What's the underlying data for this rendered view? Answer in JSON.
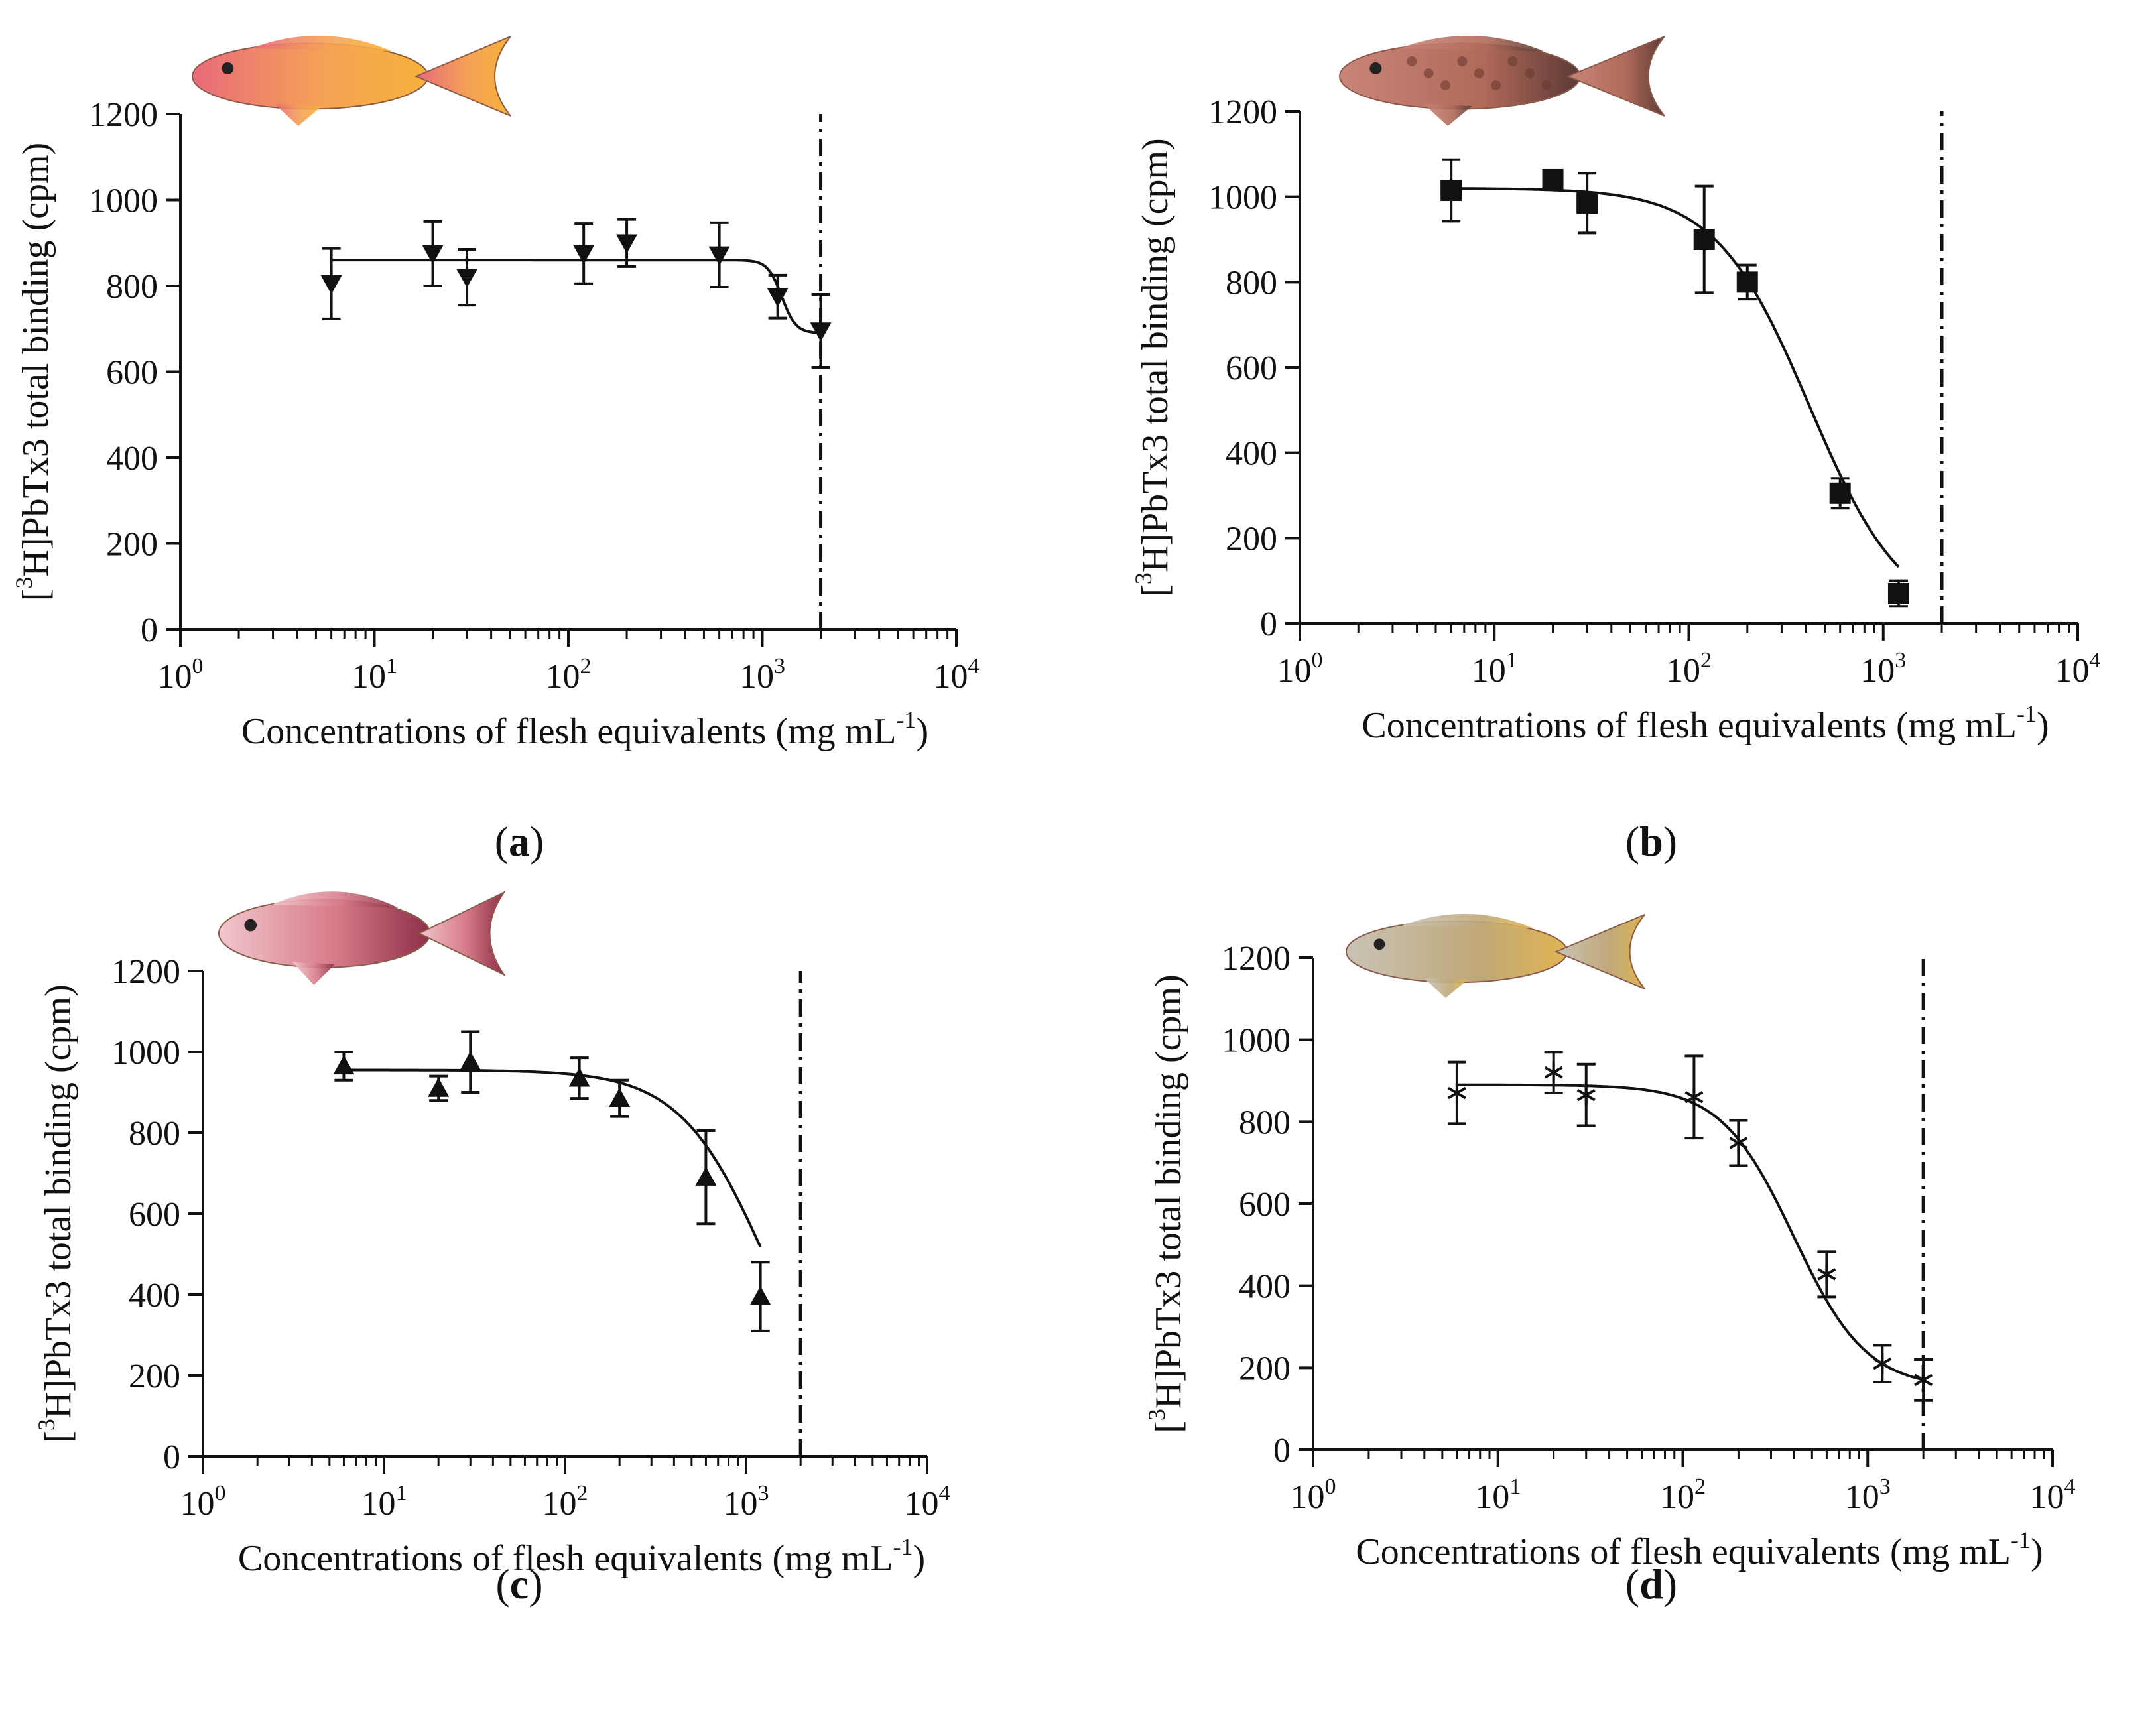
{
  "figure": {
    "colors": {
      "ink": "#111111",
      "background": "#ffffff"
    },
    "fish_illustrations": [
      "fish-a-orange",
      "fish-b-brown-spotted",
      "fish-c-red",
      "fish-d-yellowtail"
    ]
  },
  "chart_data": [
    {
      "type": "scatter",
      "panel_label": "(a)",
      "panel_letter": "a",
      "marker": "triangle-down",
      "fish_icon": "orange-fish-icon",
      "xlabel": "Concentrations of flesh equivalents (mg mL",
      "xlabel_sup": "-1",
      "xlabel_end": ")",
      "ylabel_pre": "[",
      "ylabel_sup": "3",
      "ylabel_main": "H]PbTx3 total binding (cpm)",
      "xscale": "log",
      "xlim": [
        1,
        10000
      ],
      "ylim": [
        0,
        1200
      ],
      "yticks": [
        "0",
        "200",
        "400",
        "600",
        "800",
        "1000",
        "1200"
      ],
      "xticks": [
        {
          "base": "10",
          "exp": "0"
        },
        {
          "base": "10",
          "exp": "1"
        },
        {
          "base": "10",
          "exp": "2"
        },
        {
          "base": "10",
          "exp": "3"
        },
        {
          "base": "10",
          "exp": "4"
        }
      ],
      "vline_x": 2000,
      "points": [
        {
          "x": 6,
          "y": 805,
          "err": 82
        },
        {
          "x": 20,
          "y": 875,
          "err": 75
        },
        {
          "x": 30,
          "y": 820,
          "err": 65
        },
        {
          "x": 120,
          "y": 875,
          "err": 70
        },
        {
          "x": 200,
          "y": 900,
          "err": 55
        },
        {
          "x": 600,
          "y": 872,
          "err": 75
        },
        {
          "x": 1200,
          "y": 775,
          "err": 50
        },
        {
          "x": 2000,
          "y": 695,
          "err": 85
        }
      ],
      "fit": {
        "top": 860,
        "bottom": 690,
        "logEC50": 3.1,
        "hill": 12,
        "x_end": 2000
      }
    },
    {
      "type": "scatter",
      "panel_label": "(b)",
      "panel_letter": "b",
      "marker": "square",
      "fish_icon": "brown-spotted-fish-icon",
      "xlabel": "Concentrations of flesh equivalents (mg mL",
      "xlabel_sup": "-1",
      "xlabel_end": ")",
      "ylabel_pre": "[",
      "ylabel_sup": "3",
      "ylabel_main": "H]PbTx3 total binding (cpm)",
      "xscale": "log",
      "xlim": [
        1,
        10000
      ],
      "ylim": [
        0,
        1200
      ],
      "yticks": [
        "0",
        "200",
        "400",
        "600",
        "800",
        "1000",
        "1200"
      ],
      "xticks": [
        {
          "base": "10",
          "exp": "0"
        },
        {
          "base": "10",
          "exp": "1"
        },
        {
          "base": "10",
          "exp": "2"
        },
        {
          "base": "10",
          "exp": "3"
        },
        {
          "base": "10",
          "exp": "4"
        }
      ],
      "vline_x": 2000,
      "points": [
        {
          "x": 6,
          "y": 1015,
          "err": 72
        },
        {
          "x": 20,
          "y": 1040,
          "err": 15
        },
        {
          "x": 30,
          "y": 985,
          "err": 70
        },
        {
          "x": 120,
          "y": 900,
          "err": 125
        },
        {
          "x": 200,
          "y": 800,
          "err": 40
        },
        {
          "x": 600,
          "y": 305,
          "err": 35
        },
        {
          "x": 1200,
          "y": 70,
          "err": 30
        }
      ],
      "fit": {
        "top": 1020,
        "bottom": 0,
        "logEC50": 2.62,
        "hill": 1.8,
        "x_end": 1200
      }
    },
    {
      "type": "scatter",
      "panel_label": "(c)",
      "panel_letter": "c",
      "marker": "triangle-up",
      "fish_icon": "red-fish-icon",
      "xlabel": "Concentrations of flesh equivalents (mg mL",
      "xlabel_sup": "-1",
      "xlabel_end": ")",
      "ylabel_pre": "[",
      "ylabel_sup": "3",
      "ylabel_main": "H]PbTx3 total binding (cpm)",
      "xscale": "log",
      "xlim": [
        1,
        10000
      ],
      "ylim": [
        0,
        1200
      ],
      "yticks": [
        "0",
        "200",
        "400",
        "600",
        "800",
        "1000",
        "1200"
      ],
      "xticks": [
        {
          "base": "10",
          "exp": "0"
        },
        {
          "base": "10",
          "exp": "1"
        },
        {
          "base": "10",
          "exp": "2"
        },
        {
          "base": "10",
          "exp": "3"
        },
        {
          "base": "10",
          "exp": "4"
        }
      ],
      "vline_x": 2000,
      "points": [
        {
          "x": 6,
          "y": 965,
          "err": 35
        },
        {
          "x": 20,
          "y": 910,
          "err": 30
        },
        {
          "x": 30,
          "y": 975,
          "err": 75
        },
        {
          "x": 120,
          "y": 935,
          "err": 50
        },
        {
          "x": 200,
          "y": 885,
          "err": 45
        },
        {
          "x": 600,
          "y": 690,
          "err": 115
        },
        {
          "x": 1200,
          "y": 395,
          "err": 85
        }
      ],
      "fit": {
        "top": 955,
        "bottom": 0,
        "logEC50": 3.12,
        "hill": 1.8,
        "x_end": 1200
      }
    },
    {
      "type": "scatter",
      "panel_label": "(d)",
      "panel_letter": "d",
      "marker": "star",
      "fish_icon": "yellowtail-fish-icon",
      "xlabel": "Concentrations of flesh equivalents (mg mL",
      "xlabel_sup": "-1",
      "xlabel_end": ")",
      "ylabel_pre": "[",
      "ylabel_sup": "3",
      "ylabel_main": "H]PbTx3 total binding (cpm)",
      "xscale": "log",
      "xlim": [
        1,
        10000
      ],
      "ylim": [
        0,
        1200
      ],
      "yticks": [
        "0",
        "200",
        "400",
        "600",
        "800",
        "1000",
        "1200"
      ],
      "xticks": [
        {
          "base": "10",
          "exp": "0"
        },
        {
          "base": "10",
          "exp": "1"
        },
        {
          "base": "10",
          "exp": "2"
        },
        {
          "base": "10",
          "exp": "3"
        },
        {
          "base": "10",
          "exp": "4"
        }
      ],
      "vline_x": 2000,
      "points": [
        {
          "x": 6,
          "y": 870,
          "err": 75
        },
        {
          "x": 20,
          "y": 920,
          "err": 50
        },
        {
          "x": 30,
          "y": 865,
          "err": 75
        },
        {
          "x": 115,
          "y": 860,
          "err": 100
        },
        {
          "x": 200,
          "y": 748,
          "err": 55
        },
        {
          "x": 600,
          "y": 428,
          "err": 55
        },
        {
          "x": 1200,
          "y": 210,
          "err": 45
        },
        {
          "x": 2000,
          "y": 170,
          "err": 50
        }
      ],
      "fit": {
        "top": 890,
        "bottom": 150,
        "logEC50": 2.6,
        "hill": 2.2,
        "x_end": 2000
      }
    }
  ]
}
